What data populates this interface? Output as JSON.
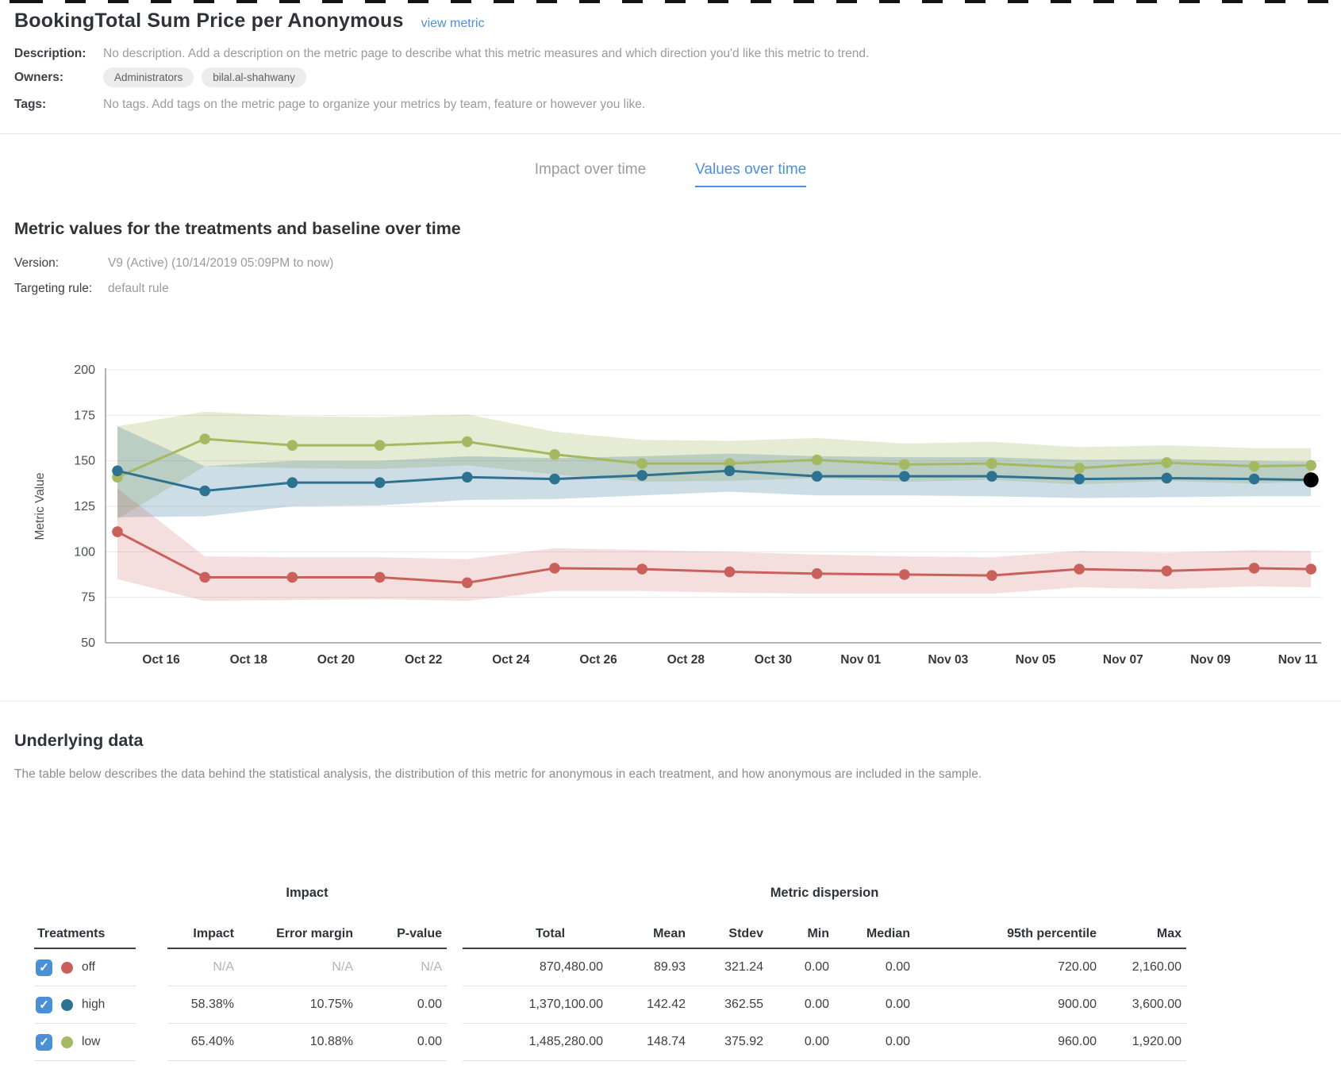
{
  "header": {
    "title": "BookingTotal Sum Price per Anonymous",
    "view_metric_link": "view metric",
    "description_label": "Description:",
    "description": "No description. Add a description on the metric page to describe what this metric measures and which direction you'd like this metric to trend.",
    "owners_label": "Owners:",
    "owners": [
      "Administrators",
      "bilal.al-shahwany"
    ],
    "tags_label": "Tags:",
    "tags_text": "No tags. Add tags on the metric page to organize your metrics by team, feature or however you like."
  },
  "tabs": [
    {
      "label": "Impact over time",
      "active": false
    },
    {
      "label": "Values over time",
      "active": true
    }
  ],
  "values_section": {
    "title": "Metric values for the treatments and baseline over time",
    "version_label": "Version:",
    "version": "V9 (Active) (10/14/2019 05:09PM to now)",
    "targeting_label": "Targeting rule:",
    "targeting_rule": "default rule"
  },
  "chart_data": {
    "type": "line",
    "ylabel": "Metric Value",
    "ylim": [
      50,
      200
    ],
    "yticks": [
      50,
      75,
      100,
      125,
      150,
      175,
      200
    ],
    "grid": true,
    "x_tick_labels": [
      "Oct 16",
      "Oct 18",
      "Oct 20",
      "Oct 22",
      "Oct 24",
      "Oct 26",
      "Oct 28",
      "Oct 30",
      "Nov 01",
      "Nov 03",
      "Nov 05",
      "Nov 07",
      "Nov 09",
      "Nov 11"
    ],
    "x_tick_days": [
      1,
      3,
      5,
      7,
      9,
      11,
      13,
      15,
      17,
      19,
      21,
      23,
      25,
      27
    ],
    "x_days": [
      0,
      2,
      4,
      6,
      8,
      10,
      12,
      14,
      16,
      18,
      20,
      22,
      24,
      26,
      27.3
    ],
    "latest_point_color": "#000000",
    "series": [
      {
        "name": "low",
        "color": "#a5b962",
        "values": [
          141,
          162,
          158.5,
          158.5,
          160.5,
          153.5,
          148.5,
          148.5,
          150.5,
          148,
          148.5,
          146,
          149,
          147,
          147.5
        ],
        "upper": [
          169,
          177,
          174.5,
          174,
          175.5,
          166,
          161.5,
          161,
          162.5,
          159.5,
          160.5,
          157.5,
          158.5,
          157,
          157
        ],
        "lower": [
          118,
          147,
          146,
          145.5,
          147.5,
          142.5,
          138.5,
          139,
          140.5,
          138.5,
          139.5,
          137,
          139,
          137.5,
          138.5
        ]
      },
      {
        "name": "high",
        "color": "#2e7291",
        "values": [
          144.5,
          133.5,
          138,
          138,
          141,
          140,
          142,
          144.5,
          141.5,
          141.5,
          141.5,
          140,
          140.5,
          140,
          139.5
        ],
        "upper": [
          169,
          147,
          150,
          150,
          152.5,
          151.5,
          152.5,
          154,
          152.5,
          152,
          152,
          150.5,
          151,
          150,
          149.5
        ],
        "lower": [
          119,
          119.5,
          125,
          125.5,
          128.5,
          129,
          131,
          133,
          131,
          131,
          130.5,
          129.5,
          130,
          130.5,
          130.5
        ]
      },
      {
        "name": "off",
        "color": "#c9605c",
        "values": [
          111,
          86,
          86,
          86,
          83,
          91,
          90.5,
          89,
          88,
          87.5,
          87,
          90.5,
          89.5,
          91,
          90.5
        ],
        "upper": [
          135,
          97.5,
          97,
          97,
          96,
          102,
          101,
          100,
          98.5,
          97.5,
          97,
          100.5,
          99.5,
          101,
          100.5
        ],
        "lower": [
          85,
          73,
          73.5,
          74,
          73,
          78.5,
          78.5,
          77.5,
          77,
          77,
          77,
          80.5,
          79.5,
          81,
          80.5
        ]
      }
    ]
  },
  "underlying": {
    "title": "Underlying data",
    "description": "The table below describes the data behind the statistical analysis, the distribution of this metric for anonymous in each treatment, and how anonymous are included in the sample.",
    "table": {
      "treatments_header": "Treatments",
      "impact_group_header": "Impact",
      "dispersion_group_header": "Metric dispersion",
      "impact_columns": [
        "Impact",
        "Error margin",
        "P-value"
      ],
      "dispersion_columns": [
        "Total",
        "Mean",
        "Stdev",
        "Min",
        "Median",
        "95th percentile",
        "Max"
      ],
      "rows": [
        {
          "treatment": "off",
          "color": "#c9605c",
          "checked": true,
          "impact": [
            "N/A",
            "N/A",
            "N/A"
          ],
          "impact_na": true,
          "dispersion": [
            "870,480.00",
            "89.93",
            "321.24",
            "0.00",
            "0.00",
            "720.00",
            "2,160.00"
          ]
        },
        {
          "treatment": "high",
          "color": "#2e7291",
          "checked": true,
          "impact": [
            "58.38%",
            "10.75%",
            "0.00"
          ],
          "impact_na": false,
          "dispersion": [
            "1,370,100.00",
            "142.42",
            "362.55",
            "0.00",
            "0.00",
            "900.00",
            "3,600.00"
          ]
        },
        {
          "treatment": "low",
          "color": "#a5b962",
          "checked": true,
          "impact": [
            "65.40%",
            "10.88%",
            "0.00"
          ],
          "impact_na": false,
          "dispersion": [
            "1,485,280.00",
            "148.74",
            "375.92",
            "0.00",
            "0.00",
            "960.00",
            "1,920.00"
          ]
        }
      ]
    }
  }
}
